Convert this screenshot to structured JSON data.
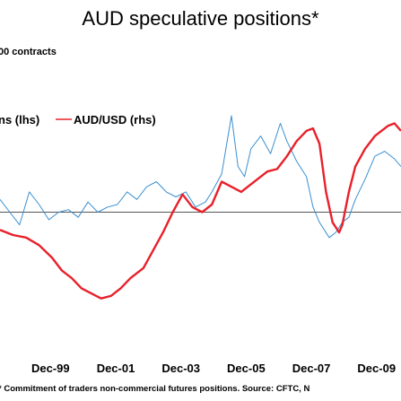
{
  "chart_data": {
    "type": "line",
    "title": "AUD speculative positions*",
    "y_units_label": "00 contracts",
    "footnote": "* Commitment of traders non-commercial futures positions. Source: CFTC, N",
    "x_tick_labels": [
      "Dec-99",
      "Dec-01",
      "Dec-03",
      "Dec-05",
      "Dec-07",
      "Dec-09"
    ],
    "x_range": [
      1998.4,
      2010.7
    ],
    "y_range": [
      0,
      100
    ],
    "baseline_y": 50,
    "grid": false,
    "legend_position": "top-left",
    "legend": [
      {
        "label": "ns (lhs)",
        "color": "#3a8fd0"
      },
      {
        "label": "AUD/USD (rhs)",
        "color": "#e8202a"
      }
    ],
    "series": [
      {
        "name": "ns (lhs)",
        "color": "#3a8fd0",
        "points": [
          [
            1998.4,
            55
          ],
          [
            1998.7,
            50
          ],
          [
            1999.0,
            45
          ],
          [
            1999.3,
            58
          ],
          [
            1999.6,
            53
          ],
          [
            1999.9,
            47
          ],
          [
            2000.2,
            50
          ],
          [
            2000.5,
            51
          ],
          [
            2000.8,
            48
          ],
          [
            2001.1,
            54
          ],
          [
            2001.4,
            50
          ],
          [
            2001.7,
            52
          ],
          [
            2002.0,
            53
          ],
          [
            2002.3,
            58
          ],
          [
            2002.6,
            55
          ],
          [
            2002.9,
            60
          ],
          [
            2003.2,
            62
          ],
          [
            2003.5,
            58
          ],
          [
            2003.8,
            56
          ],
          [
            2004.1,
            58
          ],
          [
            2004.4,
            52
          ],
          [
            2004.7,
            54
          ],
          [
            2004.9,
            58
          ],
          [
            2005.2,
            65
          ],
          [
            2005.5,
            88
          ],
          [
            2005.7,
            68
          ],
          [
            2005.9,
            64
          ],
          [
            2006.1,
            75
          ],
          [
            2006.4,
            80
          ],
          [
            2006.7,
            73
          ],
          [
            2007.0,
            85
          ],
          [
            2007.2,
            78
          ],
          [
            2007.5,
            70
          ],
          [
            2007.8,
            64
          ],
          [
            2008.0,
            52
          ],
          [
            2008.2,
            46
          ],
          [
            2008.5,
            40
          ],
          [
            2008.7,
            42
          ],
          [
            2008.9,
            46
          ],
          [
            2009.1,
            48
          ],
          [
            2009.3,
            55
          ],
          [
            2009.6,
            63
          ],
          [
            2009.9,
            72
          ],
          [
            2010.2,
            74
          ],
          [
            2010.5,
            71
          ],
          [
            2010.7,
            68
          ]
        ]
      },
      {
        "name": "AUD/USD (rhs)",
        "color": "#e8202a",
        "points": [
          [
            1998.4,
            43
          ],
          [
            1998.8,
            41
          ],
          [
            1999.2,
            40
          ],
          [
            1999.6,
            37
          ],
          [
            2000.0,
            32
          ],
          [
            2000.3,
            27
          ],
          [
            2000.6,
            24
          ],
          [
            2000.9,
            20
          ],
          [
            2001.2,
            18
          ],
          [
            2001.5,
            16
          ],
          [
            2001.8,
            17
          ],
          [
            2002.1,
            20
          ],
          [
            2002.4,
            24
          ],
          [
            2002.8,
            28
          ],
          [
            2003.1,
            35
          ],
          [
            2003.4,
            42
          ],
          [
            2003.7,
            50
          ],
          [
            2004.0,
            57
          ],
          [
            2004.3,
            52
          ],
          [
            2004.6,
            50
          ],
          [
            2004.9,
            53
          ],
          [
            2005.2,
            62
          ],
          [
            2005.5,
            60
          ],
          [
            2005.8,
            58
          ],
          [
            2006.0,
            60
          ],
          [
            2006.3,
            63
          ],
          [
            2006.6,
            66
          ],
          [
            2006.9,
            67
          ],
          [
            2007.2,
            72
          ],
          [
            2007.5,
            78
          ],
          [
            2007.8,
            82
          ],
          [
            2008.0,
            83
          ],
          [
            2008.2,
            77
          ],
          [
            2008.4,
            58
          ],
          [
            2008.6,
            46
          ],
          [
            2008.8,
            42
          ],
          [
            2008.9,
            45
          ],
          [
            2009.1,
            58
          ],
          [
            2009.3,
            68
          ],
          [
            2009.6,
            75
          ],
          [
            2009.9,
            80
          ],
          [
            2010.1,
            82
          ],
          [
            2010.3,
            84
          ],
          [
            2010.5,
            85
          ],
          [
            2010.7,
            82
          ]
        ]
      }
    ]
  }
}
